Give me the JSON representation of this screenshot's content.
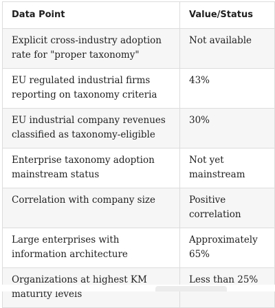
{
  "table": {
    "headers": [
      "Data Point",
      "Value/Status"
    ],
    "rows": [
      {
        "data_point": "Explicit cross-industry adoption rate for \"proper taxonomy\"",
        "value": "Not available"
      },
      {
        "data_point": "EU regulated industrial firms reporting on taxonomy criteria",
        "value": "43%"
      },
      {
        "data_point": "EU industrial company revenues classified as taxonomy-eligible",
        "value": "30%"
      },
      {
        "data_point": "Enterprise taxonomy adoption mainstream status",
        "value": "Not yet mainstream"
      },
      {
        "data_point": "Correlation with company size",
        "value": "Positive correlation"
      },
      {
        "data_point": "Large enterprises with information architecture",
        "value": "Approximately 65%"
      },
      {
        "data_point": "Organizations at highest KM maturity levels",
        "value": "Less than 25%"
      }
    ]
  }
}
